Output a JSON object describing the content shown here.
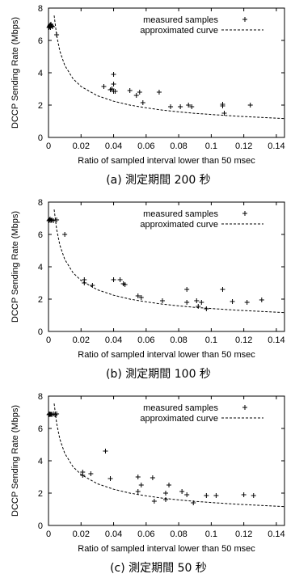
{
  "chart_data": [
    {
      "type": "scatter",
      "caption": "(a) 測定期間 200 秒",
      "xlabel": "Ratio of sampled interval lower than 50 msec",
      "ylabel": "DCCP Sending Rate (Mbps)",
      "xlim": [
        0,
        0.145
      ],
      "ylim": [
        0,
        8
      ],
      "xticks": [
        "0",
        "0.02",
        "0.04",
        "0.06",
        "0.08",
        "0.1",
        "0.12",
        "0.14"
      ],
      "yticks": [
        "0",
        "2",
        "4",
        "6",
        "8"
      ],
      "legend": {
        "placement": "top-right",
        "samples_label": "measured samples",
        "curve_label": "approximated curve"
      },
      "series": [
        {
          "name": "measured samples",
          "style": "plus",
          "points": [
            [
              0.0003,
              6.8
            ],
            [
              0.0006,
              6.85
            ],
            [
              0.0008,
              6.9
            ],
            [
              0.001,
              6.95
            ],
            [
              0.0012,
              6.8
            ],
            [
              0.0015,
              7.0
            ],
            [
              0.002,
              6.9
            ],
            [
              0.0025,
              6.85
            ],
            [
              0.005,
              6.35
            ],
            [
              0.034,
              3.15
            ],
            [
              0.038,
              2.95
            ],
            [
              0.039,
              3.0
            ],
            [
              0.04,
              2.85
            ],
            [
              0.04,
              3.3
            ],
            [
              0.04,
              3.9
            ],
            [
              0.041,
              2.85
            ],
            [
              0.05,
              2.9
            ],
            [
              0.054,
              2.6
            ],
            [
              0.056,
              2.8
            ],
            [
              0.058,
              2.15
            ],
            [
              0.068,
              2.8
            ],
            [
              0.075,
              1.9
            ],
            [
              0.081,
              1.9
            ],
            [
              0.086,
              2.0
            ],
            [
              0.088,
              1.9
            ],
            [
              0.107,
              2.05
            ],
            [
              0.107,
              1.95
            ],
            [
              0.108,
              1.5
            ],
            [
              0.124,
              2.0
            ]
          ]
        },
        {
          "name": "approximated curve",
          "style": "dashed",
          "x": [
            0.0035,
            0.005,
            0.007,
            0.01,
            0.015,
            0.02,
            0.03,
            0.04,
            0.05,
            0.06,
            0.07,
            0.08,
            0.09,
            0.1,
            0.11,
            0.12,
            0.13,
            0.14,
            0.145
          ],
          "y": [
            7.54,
            6.31,
            5.33,
            4.46,
            3.64,
            3.15,
            2.58,
            2.24,
            2.0,
            1.83,
            1.69,
            1.58,
            1.49,
            1.42,
            1.35,
            1.29,
            1.24,
            1.19,
            1.17
          ]
        }
      ]
    },
    {
      "type": "scatter",
      "caption": "(b) 測定期間 100 秒",
      "xlabel": "Ratio of sampled interval lower than 50 msec",
      "ylabel": "DCCP Sending Rate (Mbps)",
      "xlim": [
        0,
        0.145
      ],
      "ylim": [
        0,
        8
      ],
      "xticks": [
        "0",
        "0.02",
        "0.04",
        "0.06",
        "0.08",
        "0.1",
        "0.12",
        "0.14"
      ],
      "yticks": [
        "0",
        "2",
        "4",
        "6",
        "8"
      ],
      "legend": {
        "placement": "top-right",
        "samples_label": "measured samples",
        "curve_label": "approximated curve"
      },
      "series": [
        {
          "name": "measured samples",
          "style": "plus",
          "points": [
            [
              0.0003,
              6.85
            ],
            [
              0.0006,
              6.9
            ],
            [
              0.001,
              6.95
            ],
            [
              0.0015,
              6.85
            ],
            [
              0.002,
              6.9
            ],
            [
              0.003,
              6.85
            ],
            [
              0.005,
              6.9
            ],
            [
              0.01,
              6.0
            ],
            [
              0.022,
              3.2
            ],
            [
              0.022,
              3.0
            ],
            [
              0.027,
              2.85
            ],
            [
              0.04,
              3.2
            ],
            [
              0.044,
              3.2
            ],
            [
              0.046,
              2.95
            ],
            [
              0.047,
              2.9
            ],
            [
              0.055,
              2.2
            ],
            [
              0.057,
              2.1
            ],
            [
              0.07,
              1.9
            ],
            [
              0.085,
              2.6
            ],
            [
              0.085,
              1.8
            ],
            [
              0.091,
              1.9
            ],
            [
              0.092,
              1.55
            ],
            [
              0.094,
              1.8
            ],
            [
              0.097,
              1.4
            ],
            [
              0.107,
              2.6
            ],
            [
              0.113,
              1.85
            ],
            [
              0.122,
              1.8
            ],
            [
              0.131,
              1.95
            ]
          ]
        },
        {
          "name": "approximated curve",
          "style": "dashed",
          "x": [
            0.0035,
            0.005,
            0.007,
            0.01,
            0.015,
            0.02,
            0.03,
            0.04,
            0.05,
            0.06,
            0.07,
            0.08,
            0.09,
            0.1,
            0.11,
            0.12,
            0.13,
            0.14,
            0.145
          ],
          "y": [
            7.54,
            6.31,
            5.33,
            4.46,
            3.64,
            3.15,
            2.58,
            2.24,
            2.0,
            1.83,
            1.69,
            1.58,
            1.49,
            1.42,
            1.35,
            1.29,
            1.24,
            1.19,
            1.17
          ]
        }
      ]
    },
    {
      "type": "scatter",
      "caption": "(c) 測定期間 50 秒",
      "xlabel": "Ratio of sampled interval lower than 50 msec",
      "ylabel": "DCCP Sending Rate (Mbps)",
      "xlim": [
        0,
        0.145
      ],
      "ylim": [
        0,
        8
      ],
      "xticks": [
        "0",
        "0.02",
        "0.04",
        "0.06",
        "0.08",
        "0.1",
        "0.12",
        "0.14"
      ],
      "yticks": [
        "0",
        "2",
        "4",
        "6",
        "8"
      ],
      "legend": {
        "placement": "top-right",
        "samples_label": "measured samples",
        "curve_label": "approximated curve"
      },
      "series": [
        {
          "name": "measured samples",
          "style": "plus",
          "points": [
            [
              0.0003,
              6.85
            ],
            [
              0.0006,
              6.9
            ],
            [
              0.001,
              6.85
            ],
            [
              0.0015,
              6.9
            ],
            [
              0.002,
              6.85
            ],
            [
              0.003,
              6.9
            ],
            [
              0.004,
              6.85
            ],
            [
              0.005,
              6.9
            ],
            [
              0.021,
              3.3
            ],
            [
              0.021,
              3.1
            ],
            [
              0.026,
              3.2
            ],
            [
              0.035,
              4.6
            ],
            [
              0.038,
              2.9
            ],
            [
              0.055,
              3.0
            ],
            [
              0.055,
              2.1
            ],
            [
              0.057,
              2.5
            ],
            [
              0.064,
              2.95
            ],
            [
              0.065,
              1.5
            ],
            [
              0.072,
              2.0
            ],
            [
              0.072,
              1.6
            ],
            [
              0.074,
              2.5
            ],
            [
              0.082,
              2.1
            ],
            [
              0.085,
              1.9
            ],
            [
              0.089,
              1.4
            ],
            [
              0.097,
              1.85
            ],
            [
              0.103,
              1.85
            ],
            [
              0.12,
              1.9
            ],
            [
              0.126,
              1.85
            ]
          ]
        },
        {
          "name": "approximated curve",
          "style": "dashed",
          "x": [
            0.0035,
            0.005,
            0.007,
            0.01,
            0.015,
            0.02,
            0.03,
            0.04,
            0.05,
            0.06,
            0.07,
            0.08,
            0.09,
            0.1,
            0.11,
            0.12,
            0.13,
            0.14,
            0.145
          ],
          "y": [
            7.54,
            6.31,
            5.33,
            4.46,
            3.64,
            3.15,
            2.58,
            2.24,
            2.0,
            1.83,
            1.69,
            1.58,
            1.49,
            1.42,
            1.35,
            1.29,
            1.24,
            1.19,
            1.17
          ]
        }
      ]
    }
  ]
}
